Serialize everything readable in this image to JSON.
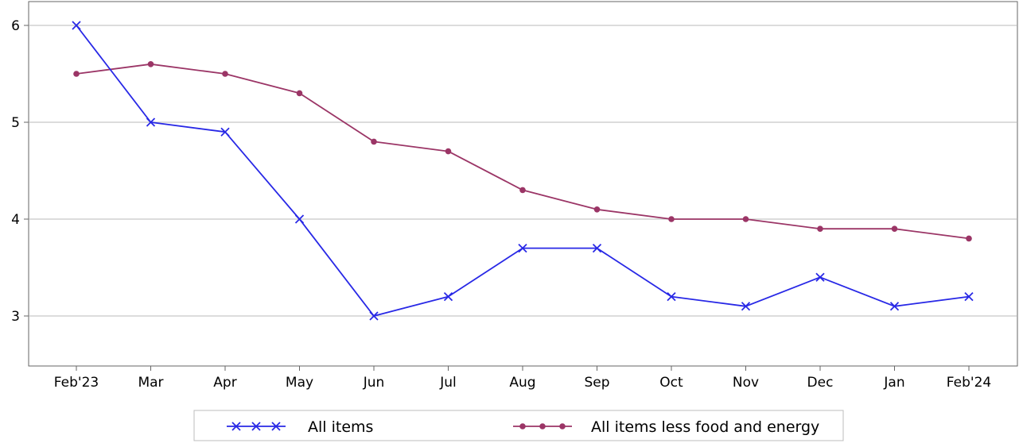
{
  "chart_data": {
    "type": "line",
    "categories": [
      "Feb'23",
      "Mar",
      "Apr",
      "May",
      "Jun",
      "Jul",
      "Aug",
      "Sep",
      "Oct",
      "Nov",
      "Dec",
      "Jan",
      "Feb'24"
    ],
    "yticks": [
      "3",
      "4",
      "5",
      "6"
    ],
    "ylim": [
      2.5,
      6.25
    ],
    "grid": true,
    "legend_position": "bottom",
    "series": [
      {
        "name": "All items",
        "marker": "x",
        "color": "#2828e6",
        "values": [
          6.0,
          5.0,
          4.9,
          4.0,
          3.0,
          3.2,
          3.7,
          3.7,
          3.2,
          3.1,
          3.4,
          3.1,
          3.2
        ]
      },
      {
        "name": "All items less food and energy",
        "marker": "dot",
        "color": "#9b3566",
        "values": [
          5.5,
          5.6,
          5.5,
          5.3,
          4.8,
          4.7,
          4.3,
          4.1,
          4.0,
          4.0,
          3.9,
          3.9,
          3.8
        ]
      }
    ]
  }
}
